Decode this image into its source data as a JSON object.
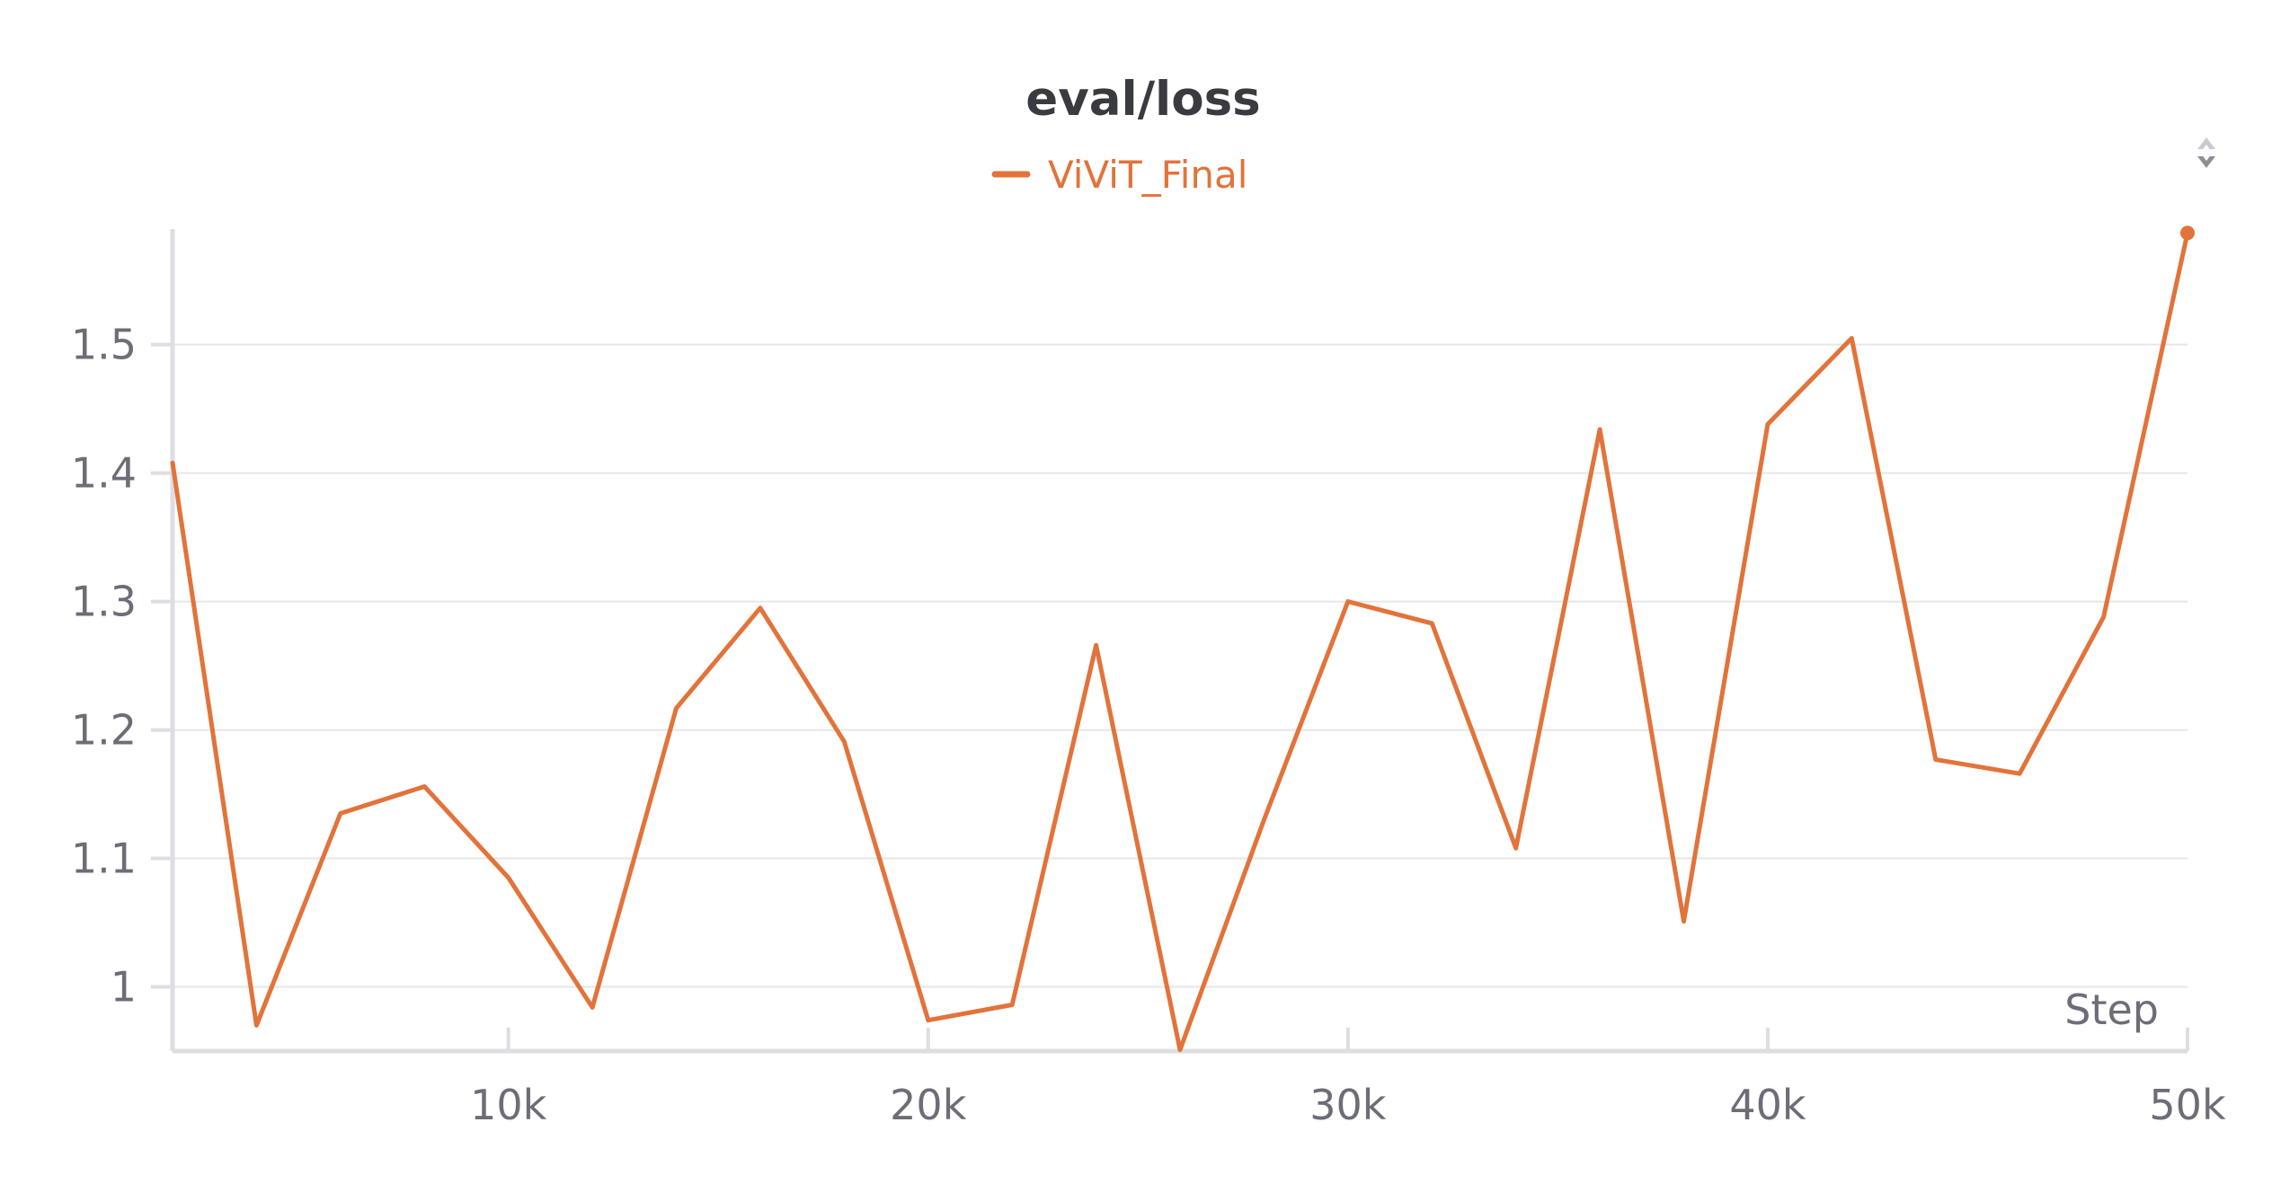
{
  "colors": {
    "series": "#e2733a",
    "axis_text": "#6d6d78",
    "title": "#3a3b40"
  },
  "icons": {
    "corner": "expand-collapse-icon"
  },
  "chart_data": {
    "type": "line",
    "title": "eval/loss",
    "xlabel": "Step",
    "ylabel": "",
    "legend_position": "top-center",
    "grid": true,
    "xlim": [
      2000,
      50000
    ],
    "ylim": [
      0.95,
      1.59
    ],
    "x_ticks": [
      10000,
      20000,
      30000,
      40000,
      50000
    ],
    "x_tick_labels": [
      "10k",
      "20k",
      "30k",
      "40k",
      "50k"
    ],
    "y_ticks": [
      1.0,
      1.1,
      1.2,
      1.3,
      1.4,
      1.5
    ],
    "y_tick_labels": [
      "1",
      "1.1",
      "1.2",
      "1.3",
      "1.4",
      "1.5"
    ],
    "series": [
      {
        "name": "ViViT_Final",
        "color": "#e2733a",
        "x": [
          2000,
          4000,
          6000,
          8000,
          10000,
          12000,
          14000,
          16000,
          18000,
          20000,
          22000,
          24000,
          26000,
          28000,
          30000,
          32000,
          34000,
          36000,
          38000,
          40000,
          42000,
          44000,
          46000,
          48000,
          50000
        ],
        "y": [
          1.408,
          0.97,
          1.135,
          1.156,
          1.085,
          0.984,
          1.217,
          1.295,
          1.191,
          0.974,
          0.986,
          1.266,
          0.951,
          1.13,
          1.3,
          1.283,
          1.108,
          1.434,
          1.051,
          1.438,
          1.505,
          1.177,
          1.166,
          1.288,
          1.587
        ]
      }
    ]
  }
}
